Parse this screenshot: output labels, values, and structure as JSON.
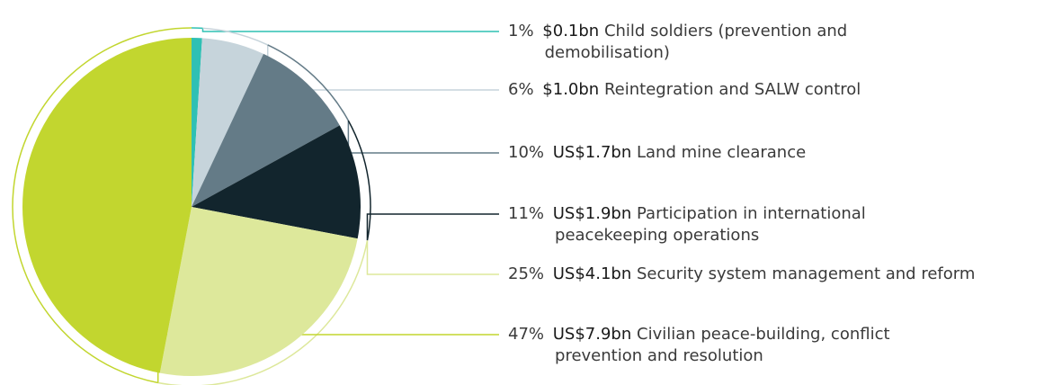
{
  "chart_data": {
    "type": "pie",
    "values": [
      1,
      6,
      10,
      11,
      25,
      47
    ],
    "value_labels": [
      "1%",
      "6%",
      "10%",
      "11%",
      "25%",
      "47%"
    ],
    "amounts": [
      "$0.1bn",
      "$1.0bn",
      "US$1.7bn",
      "US$1.9bn",
      "US$4.1bn",
      "US$7.9bn"
    ],
    "categories": [
      [
        "Child soldiers (prevention and",
        "demobilisation)"
      ],
      [
        "Reintegration and SALW control"
      ],
      [
        "Land mine clearance"
      ],
      [
        "Participation in international",
        "peacekeeping operations"
      ],
      [
        "Security system management and reform"
      ],
      [
        "Civilian peace-building, conflict",
        "prevention and resolution"
      ]
    ],
    "colors": [
      "#2fc0b4",
      "#c6d4db",
      "#647b87",
      "#12252d",
      "#dde89b",
      "#c2d62f"
    ]
  }
}
